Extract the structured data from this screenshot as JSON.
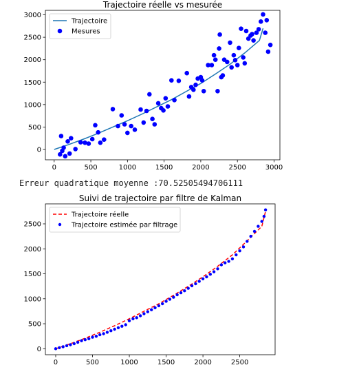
{
  "console_output": "Erreur quadratique moyenne :70.52505494706111",
  "chart_data": [
    {
      "type": "scatter",
      "title": "Trajectoire réelle vs mesurée",
      "xlabel": "",
      "ylabel": "",
      "xlim": [
        -120,
        3080
      ],
      "ylim": [
        -230,
        3100
      ],
      "xticks": [
        0,
        500,
        1000,
        1500,
        2000,
        2500,
        3000
      ],
      "yticks": [
        0,
        500,
        1000,
        1500,
        2000,
        2500,
        3000
      ],
      "legend_position": "top-left",
      "grid": false,
      "series": [
        {
          "name": "Trajectoire",
          "kind": "line",
          "color": "#1f77b4",
          "x": [
            0,
            200,
            400,
            600,
            800,
            1000,
            1200,
            1400,
            1600,
            1800,
            2000,
            2200,
            2400,
            2600,
            2800,
            2850
          ],
          "y": [
            0,
            110,
            230,
            360,
            500,
            640,
            790,
            950,
            1110,
            1290,
            1470,
            1680,
            1900,
            2150,
            2430,
            2700
          ]
        },
        {
          "name": "Mesures",
          "kind": "scatter",
          "color": "#0000ff",
          "x": [
            80,
            95,
            110,
            130,
            150,
            185,
            210,
            230,
            290,
            360,
            420,
            470,
            520,
            560,
            600,
            630,
            680,
            800,
            870,
            920,
            960,
            1000,
            1050,
            1100,
            1180,
            1220,
            1260,
            1300,
            1340,
            1370,
            1420,
            1460,
            1490,
            1520,
            1550,
            1600,
            1640,
            1700,
            1810,
            1840,
            1870,
            1900,
            1930,
            1960,
            2000,
            2020,
            2040,
            2100,
            2150,
            2180,
            2200,
            2230,
            2250,
            2260,
            2280,
            2300,
            2320,
            2360,
            2400,
            2420,
            2450,
            2470,
            2500,
            2520,
            2550,
            2580,
            2600,
            2620,
            2650,
            2680,
            2700,
            2720,
            2760,
            2790,
            2820,
            2850,
            2880,
            2900,
            2920,
            2950
          ],
          "y": [
            -110,
            300,
            -30,
            40,
            -150,
            180,
            -90,
            250,
            10,
            160,
            150,
            130,
            230,
            540,
            380,
            150,
            220,
            900,
            520,
            760,
            560,
            370,
            520,
            440,
            890,
            600,
            860,
            1230,
            680,
            560,
            1030,
            920,
            870,
            1140,
            960,
            1540,
            1100,
            1530,
            1700,
            1180,
            1390,
            1330,
            1440,
            1580,
            1610,
            1540,
            1300,
            1880,
            1880,
            2100,
            2000,
            1300,
            2250,
            2560,
            1610,
            1650,
            2000,
            1950,
            2380,
            1830,
            2100,
            1990,
            1880,
            2260,
            2690,
            2050,
            1920,
            2640,
            2470,
            2540,
            2570,
            2430,
            2600,
            2680,
            2850,
            3010,
            2600,
            2880,
            2180,
            2330
          ]
        }
      ]
    },
    {
      "type": "scatter",
      "title": "Suivi de trajectoire par filtre de Kalman",
      "xlabel": "",
      "ylabel": "",
      "xlim": [
        -140,
        2980
      ],
      "ylim": [
        -120,
        2900
      ],
      "xticks": [
        0,
        500,
        1000,
        1500,
        2000,
        2500
      ],
      "yticks": [
        0,
        500,
        1000,
        1500,
        2000,
        2500
      ],
      "legend_position": "top-left",
      "grid": false,
      "series": [
        {
          "name": "Trajectoire réelle",
          "kind": "dashed-line",
          "color": "#ff0000",
          "x": [
            0,
            200,
            400,
            600,
            800,
            1000,
            1200,
            1400,
            1600,
            1800,
            2000,
            2200,
            2400,
            2600,
            2800,
            2850
          ],
          "y": [
            0,
            100,
            210,
            330,
            460,
            600,
            750,
            900,
            1070,
            1250,
            1440,
            1650,
            1880,
            2160,
            2450,
            2750
          ]
        },
        {
          "name": "Trajectoire estimée par filtrage",
          "kind": "scatter",
          "color": "#0000ff",
          "x": [
            0,
            50,
            100,
            150,
            200,
            250,
            300,
            350,
            400,
            450,
            500,
            550,
            600,
            650,
            700,
            750,
            800,
            850,
            900,
            950,
            1000,
            1050,
            1100,
            1150,
            1200,
            1250,
            1300,
            1350,
            1400,
            1450,
            1500,
            1550,
            1600,
            1650,
            1700,
            1750,
            1800,
            1850,
            1900,
            1950,
            2000,
            2050,
            2100,
            2150,
            2200,
            2250,
            2300,
            2350,
            2400,
            2450,
            2500,
            2550,
            2600,
            2650,
            2700,
            2750,
            2800,
            2830,
            2850
          ],
          "y": [
            0,
            20,
            40,
            60,
            80,
            100,
            130,
            160,
            180,
            200,
            230,
            250,
            280,
            300,
            330,
            360,
            390,
            420,
            450,
            480,
            560,
            600,
            620,
            660,
            700,
            740,
            780,
            820,
            860,
            900,
            950,
            990,
            1030,
            1080,
            1120,
            1160,
            1210,
            1260,
            1300,
            1350,
            1400,
            1440,
            1490,
            1540,
            1600,
            1680,
            1720,
            1750,
            1800,
            1880,
            1960,
            2040,
            2150,
            2250,
            2350,
            2450,
            2550,
            2650,
            2780
          ]
        }
      ]
    }
  ]
}
